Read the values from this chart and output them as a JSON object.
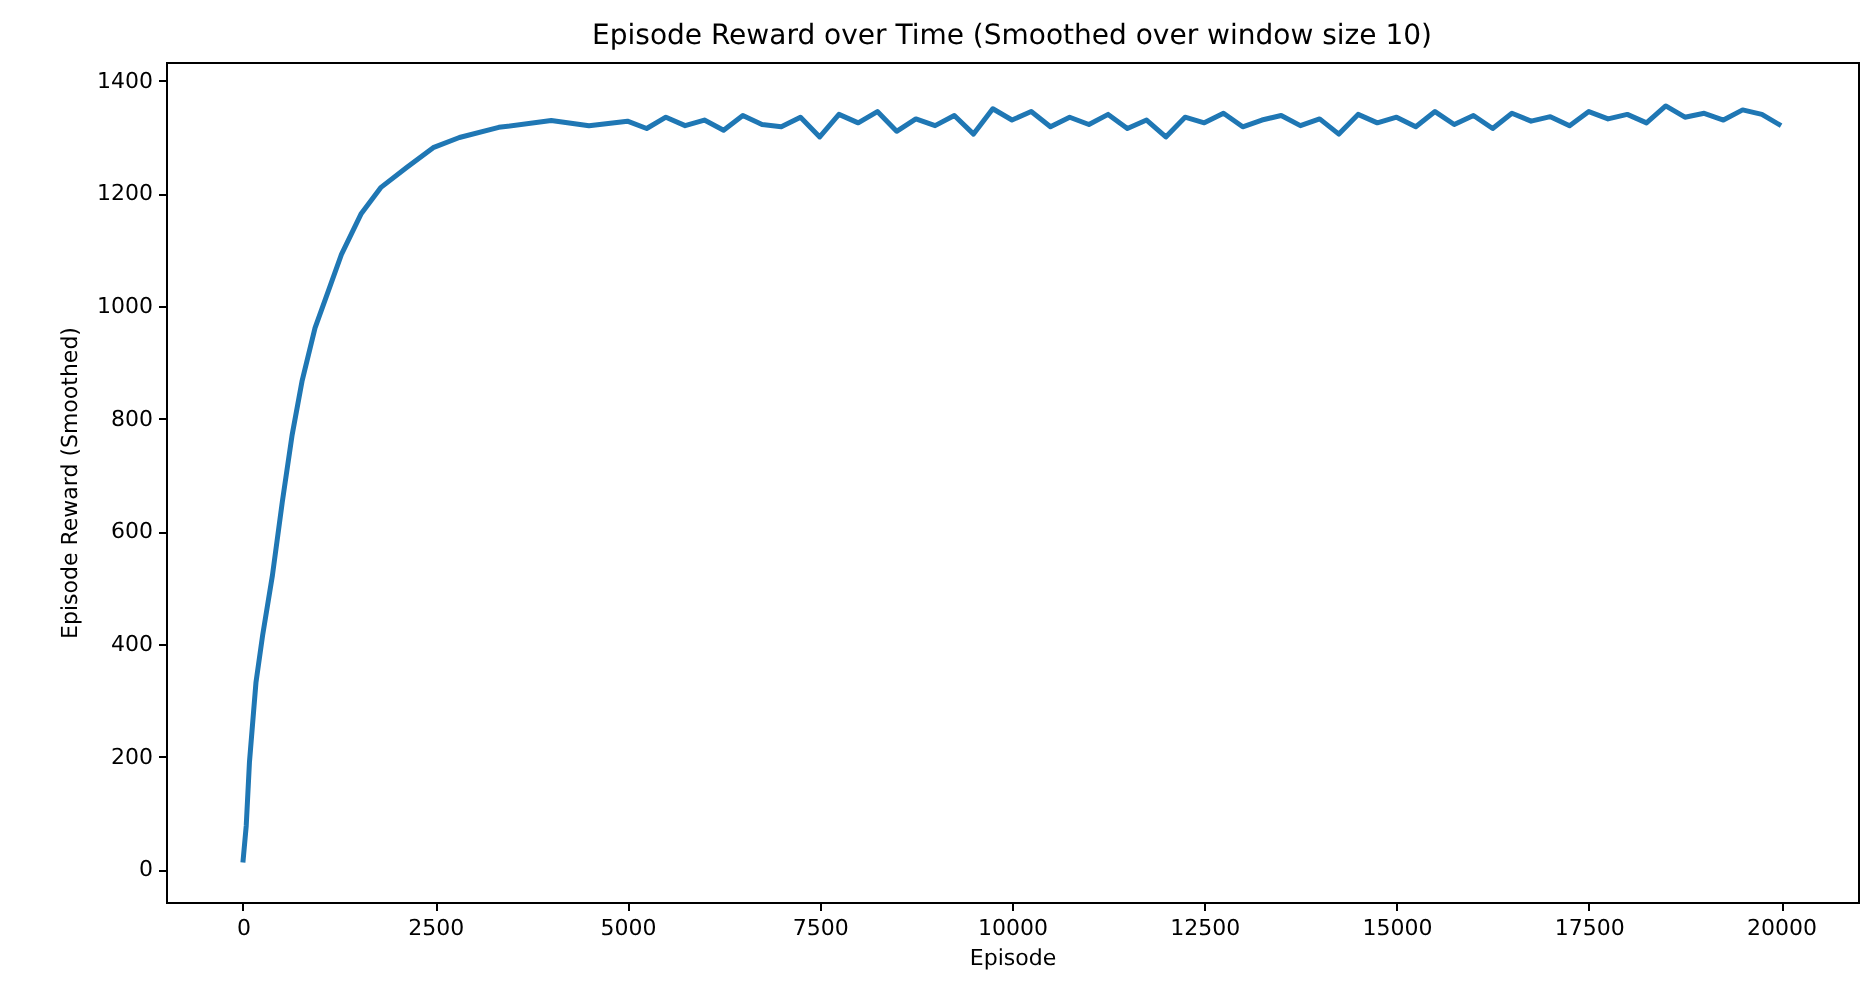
{
  "chart_data": {
    "type": "line",
    "title": "Episode Reward over Time (Smoothed over window size 10)",
    "xlabel": "Episode",
    "ylabel": "Episode Reward (Smoothed)",
    "xlim": [
      -1000,
      21000
    ],
    "ylim": [
      -58,
      1433
    ],
    "xticks": [
      0,
      2500,
      5000,
      7500,
      10000,
      12500,
      15000,
      17500,
      20000
    ],
    "yticks": [
      0,
      200,
      400,
      600,
      800,
      1000,
      1200,
      1400
    ],
    "grid": false,
    "x": [
      0,
      43,
      85,
      170,
      256,
      384,
      512,
      640,
      768,
      938,
      1109,
      1280,
      1535,
      1791,
      2133,
      2474,
      2815,
      3327,
      4009,
      4500,
      5000,
      5250,
      5500,
      5750,
      6000,
      6250,
      6500,
      6750,
      7000,
      7250,
      7500,
      7750,
      8000,
      8250,
      8500,
      8750,
      9000,
      9250,
      9500,
      9750,
      10000,
      10250,
      10500,
      10750,
      11000,
      11250,
      11500,
      11750,
      12000,
      12250,
      12500,
      12750,
      13000,
      13250,
      13500,
      13750,
      14000,
      14250,
      14500,
      14750,
      15000,
      15250,
      15500,
      15750,
      16000,
      16250,
      16500,
      16750,
      17000,
      17250,
      17500,
      17750,
      18000,
      18250,
      18500,
      18750,
      19000,
      19250,
      19500,
      19750,
      20000
    ],
    "series": [
      {
        "color": "#1f77b4",
        "values": [
          12,
          77,
          190,
          332,
          415,
          522,
          652,
          771,
          866,
          961,
          1026,
          1091,
          1163,
          1210,
          1246,
          1281,
          1299,
          1317,
          1329,
          1320,
          1328,
          1315,
          1335,
          1320,
          1330,
          1312,
          1338,
          1322,
          1318,
          1335,
          1300,
          1340,
          1325,
          1345,
          1310,
          1332,
          1320,
          1338,
          1305,
          1350,
          1330,
          1345,
          1318,
          1335,
          1322,
          1340,
          1315,
          1330,
          1300,
          1335,
          1325,
          1342,
          1318,
          1330,
          1338,
          1320,
          1332,
          1305,
          1340,
          1325,
          1335,
          1318,
          1345,
          1322,
          1338,
          1315,
          1342,
          1328,
          1336,
          1320,
          1345,
          1332,
          1340,
          1325,
          1355,
          1335,
          1342,
          1330,
          1348,
          1340,
          1320
        ]
      }
    ]
  }
}
